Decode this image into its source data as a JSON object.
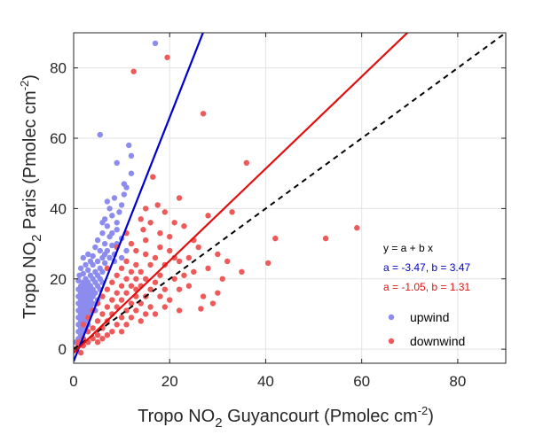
{
  "chart_data": {
    "type": "scatter",
    "xlabel": {
      "prefix": "Tropo NO",
      "sub": "2",
      "middle": " Guyancourt (Pmolec cm",
      "sup": "-2",
      "suffix": ")"
    },
    "ylabel": {
      "prefix": "Tropo NO",
      "sub": "2",
      "middle": " Paris (Pmolec cm",
      "sup": "-2",
      "suffix": ")"
    },
    "xlim": [
      0,
      90
    ],
    "ylim": [
      -4,
      90
    ],
    "xticks": [
      0,
      20,
      40,
      60,
      80
    ],
    "yticks": [
      0,
      20,
      40,
      60,
      80
    ],
    "grid": true,
    "legend_position": "lower-right",
    "equation_label": "y = a + b x",
    "fits": [
      {
        "label": "a =  -3.47, b = 3.47",
        "a": -3.47,
        "b": 3.47,
        "color": "#0000cc"
      },
      {
        "label": "a =  -1.05, b = 1.31",
        "a": -1.05,
        "b": 1.31,
        "color": "#e01010"
      }
    ],
    "reference_line": {
      "a": 0,
      "b": 1,
      "style": "dashed",
      "color": "#000000"
    },
    "series": [
      {
        "name": "upwind",
        "color": "#8c8cee",
        "points": [
          [
            17,
            87
          ],
          [
            5.5,
            61
          ],
          [
            11.5,
            58
          ],
          [
            9,
            53
          ],
          [
            12,
            50
          ],
          [
            11,
            46
          ],
          [
            10.5,
            44
          ],
          [
            8.5,
            43
          ],
          [
            7,
            42
          ],
          [
            10,
            41
          ],
          [
            9.5,
            39
          ],
          [
            8,
            38
          ],
          [
            6.5,
            37
          ],
          [
            7,
            35
          ],
          [
            9,
            34
          ],
          [
            6,
            33
          ],
          [
            7.5,
            32
          ],
          [
            10,
            31.5
          ],
          [
            5,
            31
          ],
          [
            6.5,
            30
          ],
          [
            8,
            29.5
          ],
          [
            4.5,
            29
          ],
          [
            5.5,
            28
          ],
          [
            7,
            28
          ],
          [
            3,
            27
          ],
          [
            4,
            26.5
          ],
          [
            6,
            26
          ],
          [
            8.5,
            27
          ],
          [
            10,
            26
          ],
          [
            2,
            26
          ],
          [
            3.5,
            25
          ],
          [
            5,
            25
          ],
          [
            6.5,
            24.5
          ],
          [
            2.5,
            24
          ],
          [
            4,
            24
          ],
          [
            5.5,
            23
          ],
          [
            7,
            23
          ],
          [
            1.5,
            23
          ],
          [
            3,
            22.5
          ],
          [
            4.5,
            22
          ],
          [
            6,
            22
          ],
          [
            2,
            21.5
          ],
          [
            3.5,
            21
          ],
          [
            5,
            21
          ],
          [
            1.2,
            21
          ],
          [
            2.5,
            20
          ],
          [
            4,
            20
          ],
          [
            5.5,
            20
          ],
          [
            1,
            19.5
          ],
          [
            2,
            19
          ],
          [
            3,
            19
          ],
          [
            4.5,
            19
          ],
          [
            6,
            19
          ],
          [
            1.5,
            18
          ],
          [
            2.5,
            18
          ],
          [
            3.5,
            18
          ],
          [
            5,
            18
          ],
          [
            1,
            17
          ],
          [
            2,
            17
          ],
          [
            3,
            17
          ],
          [
            4,
            17
          ],
          [
            5.5,
            17
          ],
          [
            1.5,
            16
          ],
          [
            2.5,
            16
          ],
          [
            3.5,
            16
          ],
          [
            4.5,
            16
          ],
          [
            1,
            15
          ],
          [
            2,
            15
          ],
          [
            3,
            15
          ],
          [
            4,
            15
          ],
          [
            1.5,
            14
          ],
          [
            2.5,
            14
          ],
          [
            3.5,
            14
          ],
          [
            5,
            14
          ],
          [
            1,
            13
          ],
          [
            2,
            13
          ],
          [
            3,
            13
          ],
          [
            4,
            13
          ],
          [
            1.5,
            12
          ],
          [
            2.5,
            12
          ],
          [
            3.5,
            12
          ],
          [
            1,
            11
          ],
          [
            2,
            11
          ],
          [
            3,
            11
          ],
          [
            4.5,
            11
          ],
          [
            1.5,
            10
          ],
          [
            2.5,
            10
          ],
          [
            3.5,
            10
          ],
          [
            1,
            9
          ],
          [
            2,
            9
          ],
          [
            3,
            9
          ],
          [
            1.5,
            8
          ],
          [
            2.5,
            8
          ],
          [
            1,
            7
          ],
          [
            2,
            7
          ],
          [
            3,
            7
          ],
          [
            1.5,
            6
          ],
          [
            2.5,
            6
          ],
          [
            1,
            5
          ],
          [
            2,
            5
          ],
          [
            1.5,
            4
          ],
          [
            1,
            3
          ],
          [
            2,
            3
          ],
          [
            0.5,
            2
          ],
          [
            1,
            1
          ],
          [
            0.5,
            0
          ],
          [
            8,
            33
          ],
          [
            6,
            36
          ],
          [
            7.5,
            40
          ],
          [
            9,
            36
          ],
          [
            10.5,
            47
          ],
          [
            12,
            55
          ],
          [
            11,
            28
          ],
          [
            9,
            30
          ],
          [
            8.5,
            25
          ],
          [
            7.5,
            26
          ],
          [
            6.5,
            27
          ]
        ]
      },
      {
        "name": "downwind",
        "color": "#ee5a5a",
        "points": [
          [
            12.5,
            79
          ],
          [
            19.5,
            83
          ],
          [
            27,
            67
          ],
          [
            36,
            53
          ],
          [
            16.5,
            49
          ],
          [
            22,
            43
          ],
          [
            17.5,
            41
          ],
          [
            15,
            40
          ],
          [
            19,
            39
          ],
          [
            14,
            37
          ],
          [
            16,
            36
          ],
          [
            21,
            36
          ],
          [
            23,
            35
          ],
          [
            28,
            38
          ],
          [
            33,
            39
          ],
          [
            14.5,
            34
          ],
          [
            18,
            33
          ],
          [
            20,
            32
          ],
          [
            25,
            31
          ],
          [
            42,
            31.5
          ],
          [
            52.5,
            31.5
          ],
          [
            59,
            34.5
          ],
          [
            26,
            29
          ],
          [
            30,
            27
          ],
          [
            32,
            25
          ],
          [
            40.5,
            24.5
          ],
          [
            12,
            30
          ],
          [
            13,
            28
          ],
          [
            15,
            27
          ],
          [
            17,
            26
          ],
          [
            11,
            25
          ],
          [
            13,
            24
          ],
          [
            16,
            24
          ],
          [
            19,
            24
          ],
          [
            22,
            25
          ],
          [
            24,
            26
          ],
          [
            10,
            23
          ],
          [
            12,
            22
          ],
          [
            14,
            22
          ],
          [
            18,
            21
          ],
          [
            21,
            20
          ],
          [
            23,
            21
          ],
          [
            9,
            21
          ],
          [
            11,
            20
          ],
          [
            13,
            20
          ],
          [
            15,
            20
          ],
          [
            17,
            19
          ],
          [
            25,
            22
          ],
          [
            28,
            23
          ],
          [
            8,
            19
          ],
          [
            10,
            18
          ],
          [
            12,
            18
          ],
          [
            14,
            18
          ],
          [
            16,
            17
          ],
          [
            19,
            17
          ],
          [
            22,
            17
          ],
          [
            7,
            17
          ],
          [
            9,
            16
          ],
          [
            11,
            16
          ],
          [
            13,
            15
          ],
          [
            15,
            15
          ],
          [
            18,
            15
          ],
          [
            20,
            14
          ],
          [
            27,
            15
          ],
          [
            30,
            16
          ],
          [
            6,
            15
          ],
          [
            8,
            14
          ],
          [
            10,
            14
          ],
          [
            12,
            13
          ],
          [
            14,
            13
          ],
          [
            16,
            12
          ],
          [
            19,
            12
          ],
          [
            5,
            13
          ],
          [
            7,
            12
          ],
          [
            9,
            12
          ],
          [
            11,
            11
          ],
          [
            13,
            11
          ],
          [
            15,
            10
          ],
          [
            17,
            10
          ],
          [
            22,
            11
          ],
          [
            26.5,
            11.5
          ],
          [
            4,
            11
          ],
          [
            6,
            10
          ],
          [
            8,
            10
          ],
          [
            10,
            9
          ],
          [
            12,
            9
          ],
          [
            14,
            8
          ],
          [
            3,
            9
          ],
          [
            5,
            8
          ],
          [
            7,
            8
          ],
          [
            9,
            7
          ],
          [
            11,
            7
          ],
          [
            2,
            7
          ],
          [
            4,
            6
          ],
          [
            6,
            6
          ],
          [
            8,
            5
          ],
          [
            10,
            5
          ],
          [
            3,
            5
          ],
          [
            5,
            4
          ],
          [
            7,
            4
          ],
          [
            2,
            3
          ],
          [
            4,
            3
          ],
          [
            6,
            3
          ],
          [
            1,
            2
          ],
          [
            3,
            2
          ],
          [
            5,
            2
          ],
          [
            1,
            1
          ],
          [
            2,
            1
          ],
          [
            0.5,
            0
          ],
          [
            1.5,
            -1
          ],
          [
            11,
            33
          ],
          [
            9,
            29
          ],
          [
            7,
            23
          ],
          [
            13,
            17
          ],
          [
            20,
            28
          ],
          [
            24,
            18
          ],
          [
            31,
            20
          ],
          [
            29,
            13
          ],
          [
            35,
            22
          ],
          [
            18,
            29
          ],
          [
            15,
            31
          ],
          [
            21,
            26
          ]
        ]
      }
    ]
  }
}
